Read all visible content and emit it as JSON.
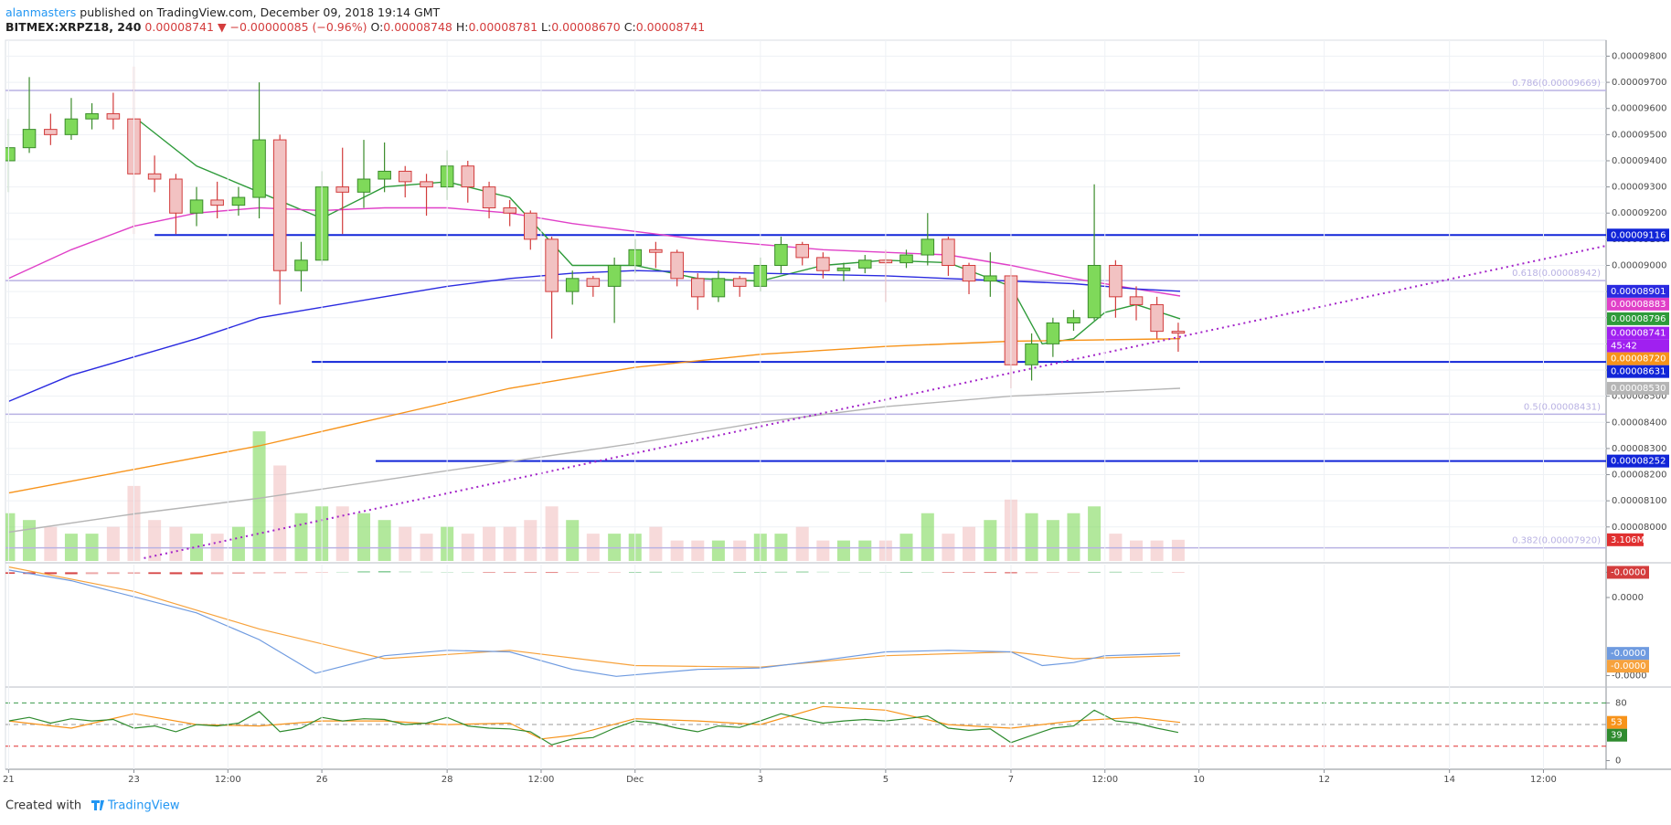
{
  "header": {
    "author": "alanmasters",
    "published": "published on TradingView.com, December 09, 2018 19:14 GMT",
    "symbol": "BITMEX:XRPZ18, 240",
    "last": "0.00008741",
    "change": "▼ −0.00000085 (−0.96%)",
    "ohlc": [
      {
        "key": "O:",
        "value": "0.00008748"
      },
      {
        "key": "H:",
        "value": "0.00008781"
      },
      {
        "key": "L:",
        "value": "0.00008670"
      },
      {
        "key": "C:",
        "value": "0.00008741"
      }
    ]
  },
  "footer": {
    "created": "Created with",
    "brand": "TradingView"
  },
  "chart_data": [
    {
      "type": "candlestick",
      "x": [
        0,
        0.33,
        0.67,
        1,
        1.33,
        1.67,
        2,
        2.33,
        2.67,
        3,
        3.33,
        3.67,
        4,
        4.33,
        4.67,
        5,
        5.33,
        5.67,
        6,
        6.33,
        6.67,
        7,
        7.33,
        7.67,
        8,
        8.33,
        8.67,
        9,
        9.33,
        9.67,
        10,
        10.33,
        10.67,
        11,
        11.33,
        11.67,
        12,
        12.33,
        12.67,
        13,
        13.33,
        13.67,
        14,
        14.33,
        14.67,
        15,
        15.33,
        15.67,
        16,
        16.33,
        16.67,
        17,
        17.33,
        17.67,
        18,
        18.33,
        18.67
      ],
      "open": [
        9.4e-05,
        9.45e-05,
        9.52e-05,
        9.5e-05,
        9.56e-05,
        9.58e-05,
        9.56e-05,
        9.35e-05,
        9.33e-05,
        9.2e-05,
        9.25e-05,
        9.23e-05,
        9.26e-05,
        9.48e-05,
        8.98e-05,
        9.02e-05,
        9.3e-05,
        9.28e-05,
        9.33e-05,
        9.36e-05,
        9.32e-05,
        9.3e-05,
        9.38e-05,
        9.3e-05,
        9.22e-05,
        9.2e-05,
        9.1e-05,
        8.9e-05,
        8.95e-05,
        8.92e-05,
        9e-05,
        9.06e-05,
        9.05e-05,
        8.95e-05,
        8.88e-05,
        8.95e-05,
        8.92e-05,
        9e-05,
        9.08e-05,
        9.03e-05,
        8.98e-05,
        8.99e-05,
        9.02e-05,
        9.01e-05,
        9.04e-05,
        9.1e-05,
        9e-05,
        8.94e-05,
        8.96e-05,
        8.62e-05,
        8.7e-05,
        8.78e-05,
        8.8e-05,
        9e-05,
        8.88e-05,
        8.85e-05,
        8.748e-05
      ],
      "high": [
        9.56e-05,
        9.72e-05,
        9.58e-05,
        9.64e-05,
        9.62e-05,
        9.66e-05,
        9.76e-05,
        9.42e-05,
        9.35e-05,
        9.3e-05,
        9.32e-05,
        9.3e-05,
        9.7e-05,
        9.5e-05,
        9.09e-05,
        9.36e-05,
        9.45e-05,
        9.48e-05,
        9.47e-05,
        9.38e-05,
        9.35e-05,
        9.44e-05,
        9.4e-05,
        9.32e-05,
        9.25e-05,
        9.21e-05,
        9.11e-05,
        8.98e-05,
        8.96e-05,
        9.03e-05,
        9.1e-05,
        9.09e-05,
        9.06e-05,
        8.97e-05,
        8.98e-05,
        8.96e-05,
        9.03e-05,
        9.11e-05,
        9.09e-05,
        9.05e-05,
        9.01e-05,
        9.04e-05,
        9.06e-05,
        9.06e-05,
        9.2e-05,
        9.11e-05,
        9.01e-05,
        9.05e-05,
        8.99e-05,
        8.74e-05,
        8.8e-05,
        8.83e-05,
        9.31e-05,
        9.02e-05,
        8.92e-05,
        8.88e-05,
        8.781e-05
      ],
      "low": [
        9.28e-05,
        9.43e-05,
        9.46e-05,
        9.48e-05,
        9.52e-05,
        9.52e-05,
        9.12e-05,
        9.28e-05,
        9.12e-05,
        9.15e-05,
        9.18e-05,
        9.19e-05,
        9.18e-05,
        8.85e-05,
        8.9e-05,
        9e-05,
        9.12e-05,
        9.22e-05,
        9.28e-05,
        9.26e-05,
        9.19e-05,
        9.25e-05,
        9.24e-05,
        9.18e-05,
        9.15e-05,
        9.06e-05,
        8.72e-05,
        8.85e-05,
        8.88e-05,
        8.78e-05,
        8.97e-05,
        8.99e-05,
        8.92e-05,
        8.83e-05,
        8.86e-05,
        8.88e-05,
        8.9e-05,
        8.97e-05,
        9e-05,
        8.95e-05,
        8.94e-05,
        8.97e-05,
        8.86e-05,
        8.99e-05,
        9e-05,
        8.96e-05,
        8.89e-05,
        8.88e-05,
        8.53e-05,
        8.56e-05,
        8.65e-05,
        8.75e-05,
        8.79e-05,
        8.8e-05,
        8.79e-05,
        8.72e-05,
        8.67e-05
      ],
      "close": [
        9.45e-05,
        9.52e-05,
        9.5e-05,
        9.56e-05,
        9.58e-05,
        9.56e-05,
        9.35e-05,
        9.33e-05,
        9.2e-05,
        9.25e-05,
        9.23e-05,
        9.26e-05,
        9.48e-05,
        8.98e-05,
        9.02e-05,
        9.3e-05,
        9.28e-05,
        9.33e-05,
        9.36e-05,
        9.32e-05,
        9.3e-05,
        9.38e-05,
        9.3e-05,
        9.22e-05,
        9.2e-05,
        9.1e-05,
        8.9e-05,
        8.95e-05,
        8.92e-05,
        9e-05,
        9.06e-05,
        9.05e-05,
        8.95e-05,
        8.88e-05,
        8.95e-05,
        8.92e-05,
        9e-05,
        9.08e-05,
        9.03e-05,
        8.98e-05,
        8.99e-05,
        9.02e-05,
        9.01e-05,
        9.04e-05,
        9.1e-05,
        9e-05,
        8.94e-05,
        8.96e-05,
        8.62e-05,
        8.7e-05,
        8.78e-05,
        8.8e-05,
        9e-05,
        8.88e-05,
        8.85e-05,
        8.748e-05,
        8.741e-05
      ],
      "volume": [
        7,
        6,
        5,
        4,
        4,
        5,
        11,
        6,
        5,
        4,
        4,
        5,
        19,
        14,
        7,
        8,
        8,
        7,
        6,
        5,
        4,
        5,
        4,
        5,
        5,
        6,
        8,
        6,
        4,
        4,
        4,
        5,
        3,
        3,
        3,
        3,
        4,
        4,
        5,
        3,
        3,
        3,
        3,
        4,
        7,
        4,
        5,
        6,
        9,
        7,
        6,
        7,
        8,
        4,
        3,
        3,
        3.106
      ],
      "volume_label": "3.106M",
      "volume_lim": [
        0,
        30
      ],
      "up_color": "#7fd95a",
      "down_color": "#f2c2c2",
      "countdown": "45:42",
      "xlim": [
        -0.05,
        25.5
      ],
      "xticks": [
        {
          "value": 0,
          "label": "21"
        },
        {
          "value": 2,
          "label": "23"
        },
        {
          "value": 3.5,
          "label": "12:00"
        },
        {
          "value": 5,
          "label": "26"
        },
        {
          "value": 7,
          "label": "28"
        },
        {
          "value": 8.5,
          "label": "12:00"
        },
        {
          "value": 10,
          "label": "Dec"
        },
        {
          "value": 12,
          "label": "3"
        },
        {
          "value": 14,
          "label": "5"
        },
        {
          "value": 16,
          "label": "7"
        },
        {
          "value": 17.5,
          "label": "12:00"
        },
        {
          "value": 19,
          "label": "10"
        },
        {
          "value": 21,
          "label": "12"
        },
        {
          "value": 23,
          "label": "14"
        },
        {
          "value": 24.5,
          "label": "12:00"
        }
      ],
      "ylim": [
        7.87e-05,
        9.861e-05
      ],
      "yticks": [
        {
          "value": 9.8e-05,
          "label": "0.00009800"
        },
        {
          "value": 9.7e-05,
          "label": "0.00009700"
        },
        {
          "value": 9.6e-05,
          "label": "0.00009600"
        },
        {
          "value": 9.5e-05,
          "label": "0.00009500"
        },
        {
          "value": 9.4e-05,
          "label": "0.00009400"
        },
        {
          "value": 9.3e-05,
          "label": "0.00009300"
        },
        {
          "value": 9.2e-05,
          "label": "0.00009200"
        },
        {
          "value": 9.1e-05,
          "label": "0.00009100"
        },
        {
          "value": 9e-05,
          "label": "0.00009000"
        },
        {
          "value": 8.9e-05,
          "label": "0.00008900"
        },
        {
          "value": 8.8e-05,
          "label": "0.00008800"
        },
        {
          "value": 8.7e-05,
          "label": "0.00008700"
        },
        {
          "value": 8.6e-05,
          "label": "0.00008600"
        },
        {
          "value": 8.5e-05,
          "label": "0.00008500"
        },
        {
          "value": 8.4e-05,
          "label": "0.00008400"
        },
        {
          "value": 8.3e-05,
          "label": "0.00008300"
        },
        {
          "value": 8.2e-05,
          "label": "0.00008200"
        },
        {
          "value": 8.1e-05,
          "label": "0.00008100"
        },
        {
          "value": 8e-05,
          "label": "0.00008000"
        }
      ],
      "grid": true,
      "series": [
        {
          "color": "#2e9b3a",
          "x": [
            2.1,
            3,
            4,
            5,
            6,
            7,
            8,
            9,
            10,
            11,
            12,
            13,
            14,
            15,
            16,
            16.5,
            17,
            17.5,
            18,
            18.7
          ],
          "values": [
            9.55e-05,
            9.38e-05,
            9.28e-05,
            9.18e-05,
            9.3e-05,
            9.32e-05,
            9.26e-05,
            9e-05,
            9e-05,
            8.95e-05,
            8.94e-05,
            9e-05,
            9.02e-05,
            9.01e-05,
            8.92e-05,
            8.7e-05,
            8.72e-05,
            8.82e-05,
            8.85e-05,
            8.796e-05
          ],
          "last_label": "0.00008796"
        },
        {
          "color": "#e040c8",
          "x": [
            0,
            1,
            2,
            3,
            4,
            5,
            6,
            7,
            8,
            9,
            10,
            11,
            12,
            13,
            14,
            15,
            16,
            17,
            18,
            18.7
          ],
          "values": [
            8.95e-05,
            9.06e-05,
            9.15e-05,
            9.2e-05,
            9.22e-05,
            9.21e-05,
            9.22e-05,
            9.22e-05,
            9.2e-05,
            9.16e-05,
            9.13e-05,
            9.1e-05,
            9.08e-05,
            9.06e-05,
            9.05e-05,
            9.04e-05,
            9e-05,
            8.95e-05,
            8.91e-05,
            8.883e-05
          ],
          "last_label": "0.00008883"
        },
        {
          "color": "#2a2ae0",
          "x": [
            0,
            1,
            2,
            3,
            4,
            5,
            6,
            7,
            8,
            9,
            10,
            12,
            14,
            16,
            17,
            18,
            18.7
          ],
          "values": [
            8.48e-05,
            8.58e-05,
            8.65e-05,
            8.72e-05,
            8.8e-05,
            8.84e-05,
            8.88e-05,
            8.92e-05,
            8.95e-05,
            8.97e-05,
            8.98e-05,
            8.97e-05,
            8.96e-05,
            8.94e-05,
            8.93e-05,
            8.91e-05,
            8.901e-05
          ],
          "last_label": "0.00008901"
        },
        {
          "color": "#f7931a",
          "x": [
            0,
            2,
            4,
            6,
            8,
            10,
            12,
            14,
            16,
            18.7
          ],
          "values": [
            8.13e-05,
            8.22e-05,
            8.31e-05,
            8.42e-05,
            8.53e-05,
            8.61e-05,
            8.66e-05,
            8.69e-05,
            8.71e-05,
            8.72e-05
          ],
          "last_label": "0.00008720"
        },
        {
          "color": "#b5b5b5",
          "x": [
            0,
            2,
            4,
            6,
            8,
            10,
            12,
            14,
            16,
            18.7
          ],
          "values": [
            7.98e-05,
            8.05e-05,
            8.11e-05,
            8.18e-05,
            8.25e-05,
            8.32e-05,
            8.4e-05,
            8.46e-05,
            8.5e-05,
            8.53e-05
          ],
          "last_label": "0.00008530"
        }
      ],
      "hlines": [
        {
          "value": 9.116e-05,
          "x": 2.33,
          "color": "#1125d8"
        },
        {
          "value": 8.631e-05,
          "x": 4.84,
          "color": "#1125d8"
        },
        {
          "value": 8.252e-05,
          "x": 5.86,
          "color": "#1125d8"
        }
      ],
      "fib": [
        {
          "value": 9.669e-05,
          "label": "0.786(0.00009669)"
        },
        {
          "value": 8.942e-05,
          "label": "0.618(0.00008942)"
        },
        {
          "value": 8.431e-05,
          "label": "0.5(0.00008431)"
        },
        {
          "value": 7.92e-05,
          "label": "0.382(0.00007920)"
        }
      ],
      "fib_color": "#b9b2e3",
      "trendline": {
        "x": [
          2.16,
          25.5
        ],
        "values": [
          7.881e-05,
          9.075e-05
        ],
        "color": "#a324c9"
      },
      "last_color": "#a020f0"
    },
    {
      "type": "bar",
      "values": [
        -2e-08,
        -2.2e-08,
        -2.4e-08,
        -2.5e-08,
        -2.4e-08,
        -2.2e-08,
        -2e-08,
        -2.2e-08,
        -2.5e-08,
        -2.6e-08,
        -2.4e-08,
        -2e-08,
        -1.5e-08,
        -1.2e-08,
        -1e-08,
        -6e-09,
        5e-09,
        1e-08,
        1.2e-08,
        1e-08,
        7e-09,
        4e-09,
        2e-09,
        -2e-09,
        -4e-09,
        -6e-09,
        -8e-09,
        -7e-09,
        -5e-09,
        -3e-09,
        3e-09,
        6e-09,
        5e-09,
        2e-09,
        1e-09,
        1e-09,
        3e-09,
        6e-09,
        8e-09,
        7e-09,
        5e-09,
        3e-09,
        2e-09,
        3e-09,
        2e-09,
        -3e-09,
        -6e-09,
        -8e-09,
        -1.2e-08,
        -1e-08,
        -6e-09,
        -2e-09,
        5e-09,
        6e-09,
        4e-09,
        2e-09,
        -1e-09
      ],
      "up_color": "#3fae5a",
      "down_color": "#d43d3d",
      "last_label": "-0.0000",
      "ylim": [
        -1.5e-06,
        1e-07
      ],
      "yticks": [
        {
          "value": 0,
          "label": "0.0000"
        },
        {
          "value": -3.3e-07,
          "label": "0.0000"
        },
        {
          "value": -1.35e-06,
          "label": "-0.0000"
        }
      ],
      "series": [
        {
          "color": "#f7a23c",
          "x": [
            0,
            2,
            4,
            6,
            8,
            10,
            12,
            14,
            16,
            17,
            18.7
          ],
          "values": [
            7e-08,
            -2.5e-07,
            -7.4e-07,
            -1.13e-06,
            -1.02e-06,
            -1.22e-06,
            -1.24e-06,
            -1.09e-06,
            -1.04e-06,
            -1.13e-06,
            -1.09e-06
          ],
          "last_label": "-0.0000"
        },
        {
          "color": "#6f9be0",
          "x": [
            0,
            1,
            2,
            3,
            4,
            4.9,
            6,
            7,
            8,
            9,
            9.7,
            11,
            12,
            13,
            14,
            15,
            16,
            16.5,
            17,
            17.5,
            18.7
          ],
          "values": [
            3e-08,
            -1.1e-07,
            -3.2e-07,
            -5.3e-07,
            -8.8e-07,
            -1.32e-06,
            -1.09e-06,
            -1.02e-06,
            -1.04e-06,
            -1.27e-06,
            -1.36e-06,
            -1.27e-06,
            -1.25e-06,
            -1.15e-06,
            -1.04e-06,
            -1.02e-06,
            -1.04e-06,
            -1.22e-06,
            -1.18e-06,
            -1.09e-06,
            -1.06e-06
          ],
          "last_label": "-0.0000"
        }
      ]
    },
    {
      "type": "line",
      "ylim": [
        -12,
        102
      ],
      "yticks": [
        0,
        80
      ],
      "levels": [
        {
          "value": 80,
          "color": "#3a9a4a"
        },
        {
          "value": 50,
          "color": "#9a9a9a"
        },
        {
          "value": 20,
          "color": "#e03030"
        }
      ],
      "series": [
        {
          "color": "#f7931a",
          "x": [
            0,
            1,
            2,
            3,
            4,
            5,
            6,
            7,
            8,
            8.5,
            9,
            10,
            11,
            12,
            13,
            14,
            15,
            16,
            17,
            18,
            18.7
          ],
          "values": [
            55,
            45,
            65,
            50,
            48,
            55,
            55,
            50,
            52,
            30,
            35,
            58,
            55,
            50,
            75,
            70,
            50,
            45,
            55,
            60,
            53
          ]
        },
        {
          "color": "#2e8b2e",
          "values": [
            55,
            60,
            52,
            58,
            55,
            57,
            45,
            48,
            40,
            50,
            48,
            52,
            68,
            40,
            45,
            60,
            55,
            58,
            57,
            50,
            52,
            60,
            48,
            45,
            44,
            40,
            22,
            30,
            32,
            45,
            55,
            52,
            45,
            40,
            48,
            46,
            55,
            65,
            58,
            52,
            55,
            57,
            55,
            58,
            62,
            45,
            42,
            44,
            25,
            35,
            45,
            48,
            70,
            55,
            52,
            45,
            39
          ]
        }
      ]
    }
  ]
}
